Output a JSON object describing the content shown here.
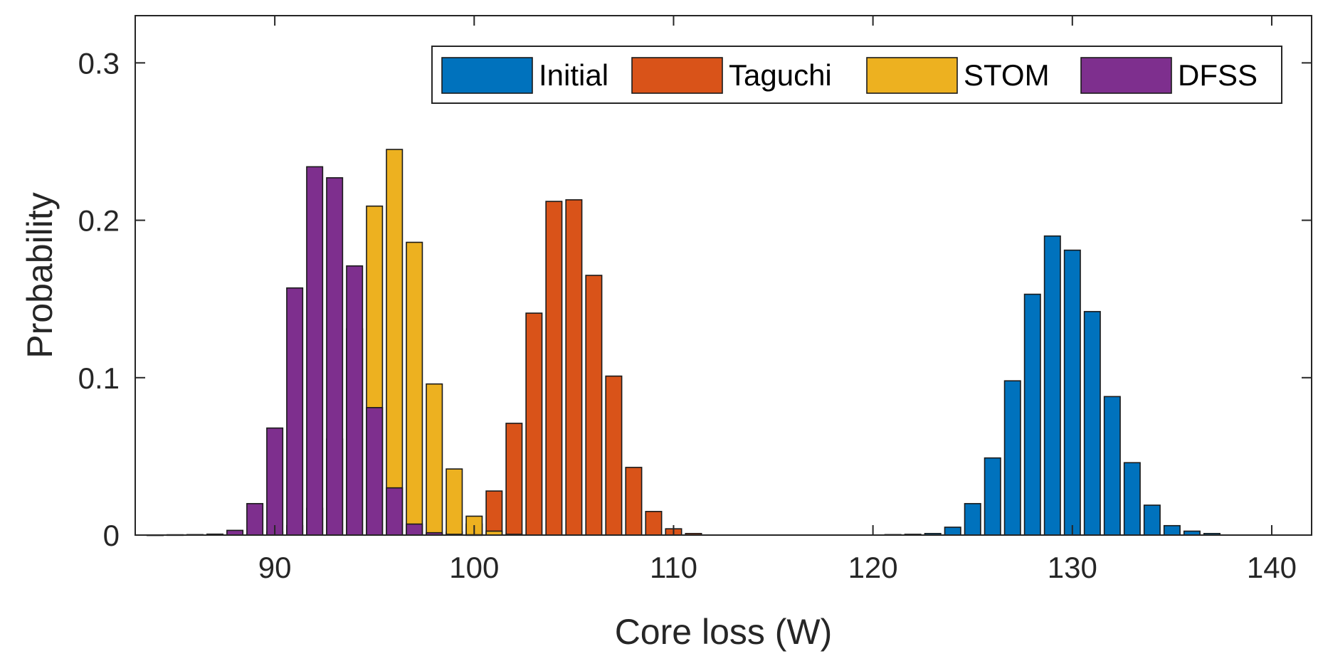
{
  "chart_data": {
    "type": "bar",
    "title": "",
    "xlabel": "Core loss (W)",
    "ylabel": "Probability",
    "xlim": [
      83,
      142
    ],
    "ylim": [
      0,
      0.33
    ],
    "xticks": [
      90,
      100,
      110,
      120,
      130,
      140
    ],
    "yticks": [
      0,
      0.1,
      0.2,
      0.3
    ],
    "xtick_labels": [
      "90",
      "100",
      "110",
      "120",
      "130",
      "140"
    ],
    "ytick_labels": [
      "0",
      "0.1",
      "0.2",
      "0.3"
    ],
    "bin_width": 1,
    "grid": false,
    "legend_position": "top-right",
    "series": [
      {
        "name": "Initial",
        "color": "#0072BD",
        "x": [
          121,
          122,
          123,
          124,
          125,
          126,
          127,
          128,
          129,
          130,
          131,
          132,
          133,
          134,
          135,
          136,
          137
        ],
        "values": [
          0.0003,
          0.0005,
          0.001,
          0.005,
          0.02,
          0.049,
          0.098,
          0.153,
          0.19,
          0.181,
          0.142,
          0.088,
          0.046,
          0.019,
          0.006,
          0.0025,
          0.001
        ]
      },
      {
        "name": "Taguchi",
        "color": "#D95319",
        "x": [
          98,
          99,
          100,
          101,
          102,
          103,
          104,
          105,
          106,
          107,
          108,
          109,
          110,
          111
        ],
        "values": [
          0.0005,
          0.002,
          0.007,
          0.028,
          0.071,
          0.141,
          0.212,
          0.213,
          0.165,
          0.101,
          0.043,
          0.015,
          0.004,
          0.001
        ]
      },
      {
        "name": "STOM",
        "color": "#EDB120",
        "x": [
          89,
          90,
          91,
          92,
          93,
          94,
          95,
          96,
          97,
          98,
          99,
          100,
          101,
          102
        ],
        "values": [
          0.0005,
          0.002,
          0.006,
          0.017,
          0.061,
          0.131,
          0.209,
          0.245,
          0.186,
          0.096,
          0.042,
          0.012,
          0.0025,
          0.0005
        ]
      },
      {
        "name": "DFSS",
        "color": "#7E2F8E",
        "x": [
          84,
          85,
          86,
          87,
          88,
          89,
          90,
          91,
          92,
          93,
          94,
          95,
          96,
          97,
          98,
          99,
          100
        ],
        "values": [
          0.0001,
          0.0002,
          0.0003,
          0.0006,
          0.003,
          0.02,
          0.068,
          0.157,
          0.234,
          0.227,
          0.171,
          0.081,
          0.03,
          0.007,
          0.0015,
          0.0005,
          0.0002
        ]
      }
    ]
  }
}
